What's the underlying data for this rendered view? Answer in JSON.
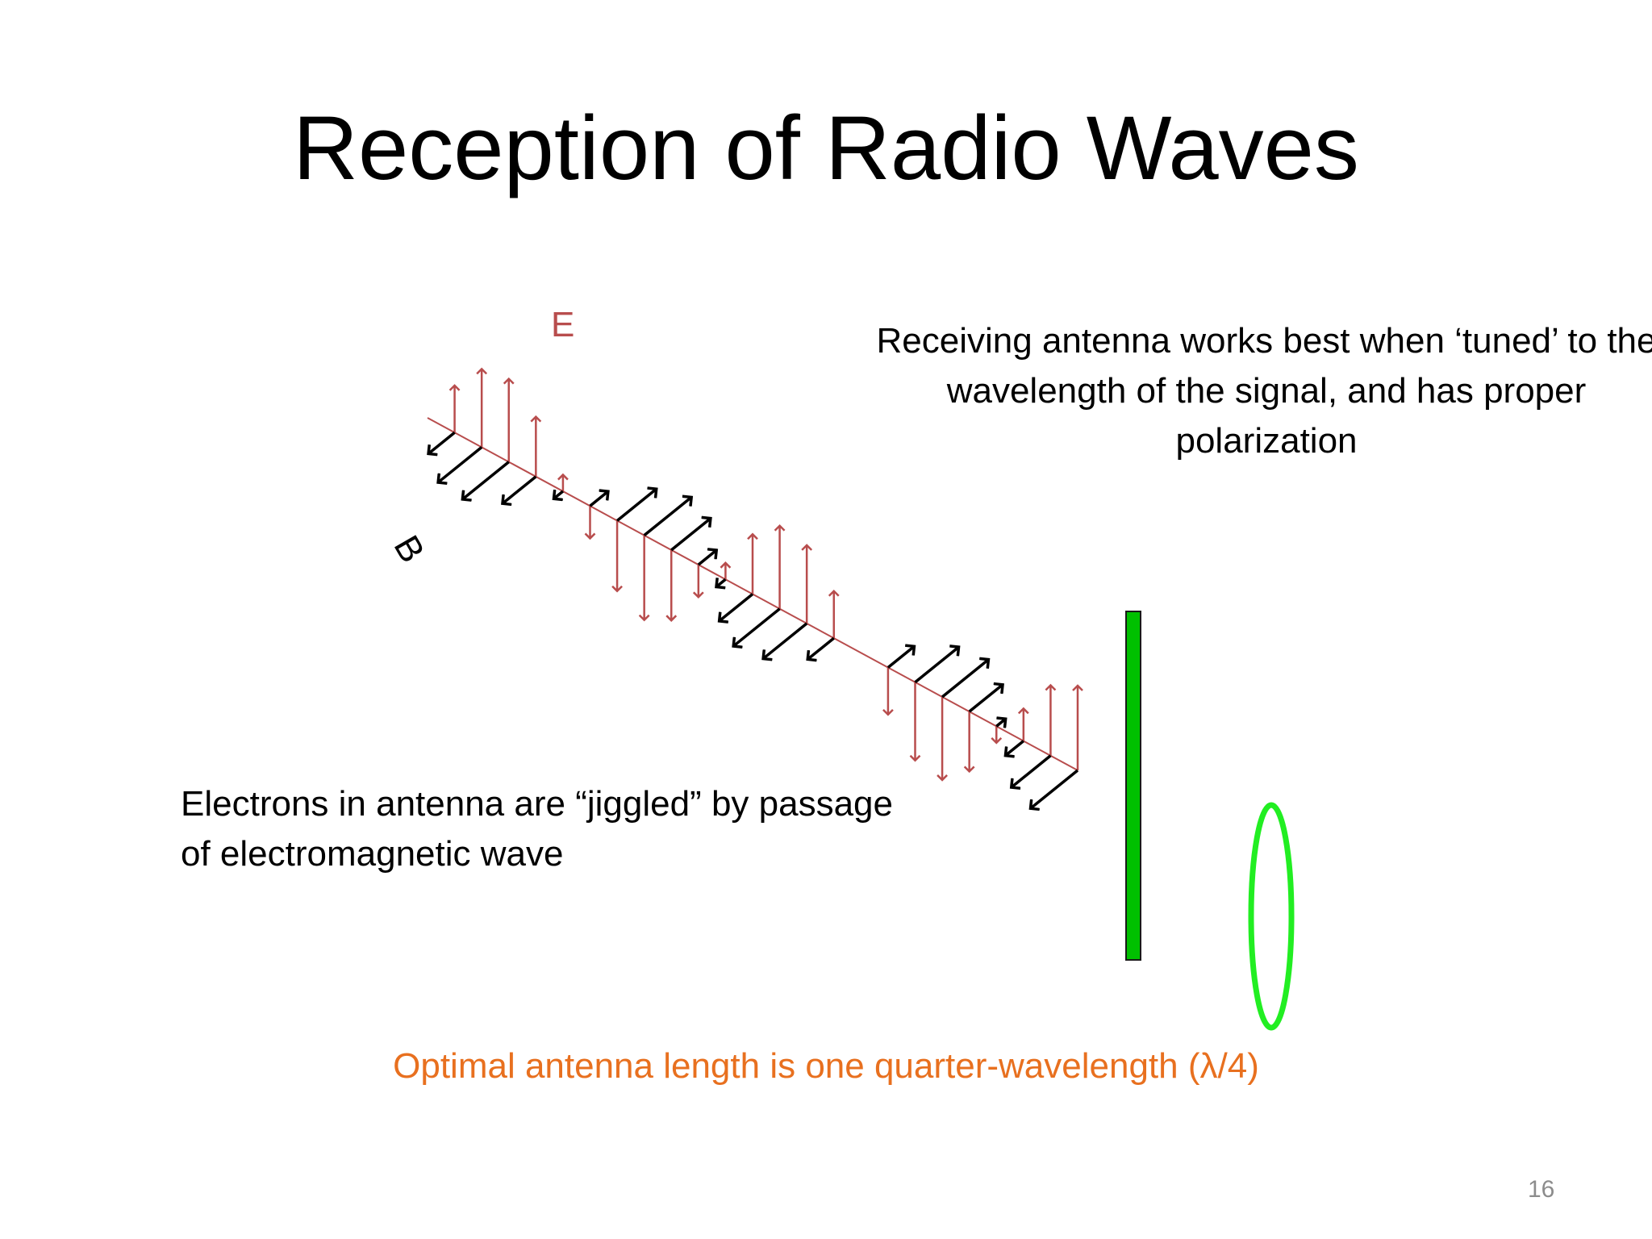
{
  "slide": {
    "title": "Reception of Radio Waves",
    "caption_right": "Receiving antenna works best when ‘tuned’ to the wavelength of the signal, and has proper polarization",
    "caption_left": "Electrons in antenna are “jiggled” by passage of electromagnetic wave",
    "note": "Optimal antenna length is one quarter-wavelength (λ/4)",
    "page_number": "16"
  },
  "labels": {
    "e_field": "E",
    "b_field": "B"
  },
  "colors": {
    "e_field": "#b84d4d",
    "b_field": "#000000",
    "dipole_antenna": "#00c000",
    "loop_antenna": "#22ee22",
    "note_text": "#e8701f"
  }
}
